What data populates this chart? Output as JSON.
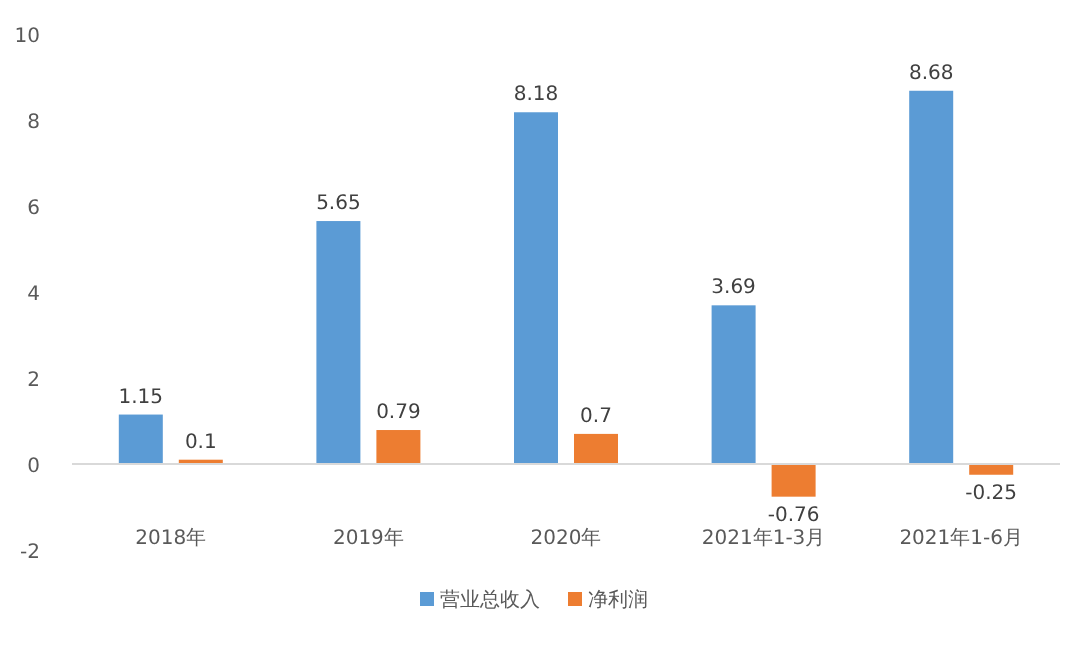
{
  "chart_data": {
    "type": "bar",
    "categories": [
      "2018年",
      "2019年",
      "2020年",
      "2021年1-3月",
      "2021年1-6月"
    ],
    "series": [
      {
        "name": "营业总收入",
        "color": "#5b9bd5",
        "values": [
          1.15,
          5.65,
          8.18,
          3.69,
          8.68
        ]
      },
      {
        "name": "净利润",
        "color": "#ed7d31",
        "values": [
          0.1,
          0.79,
          0.7,
          -0.76,
          -0.25
        ]
      }
    ],
    "ylim": [
      -2,
      10
    ],
    "yticks": [
      -2,
      0,
      2,
      4,
      6,
      8,
      10
    ],
    "legend": "bottom",
    "data_labels": true
  }
}
